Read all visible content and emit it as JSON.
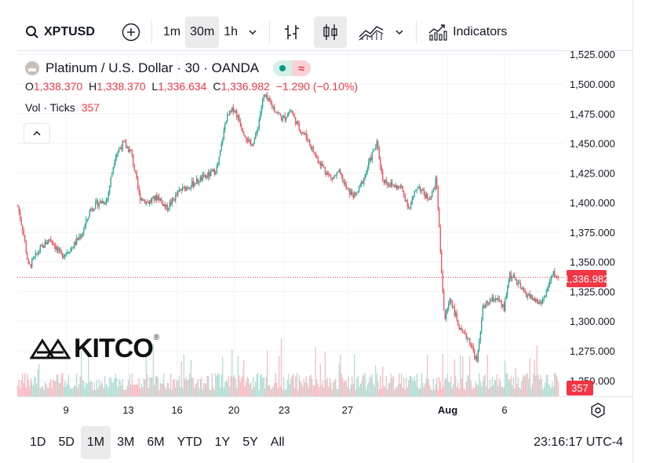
{
  "toolbar": {
    "symbol": "XPTUSD",
    "intervals": [
      "1m",
      "30m",
      "1h"
    ],
    "active_interval": "30m",
    "indicators_label": "Indicators"
  },
  "legend": {
    "title": "Platinum / U.S. Dollar · 30 · OANDA",
    "ohlc": {
      "o_label": "O",
      "o": "1,338.370",
      "h_label": "H",
      "h": "1,338.370",
      "l_label": "L",
      "l": "1,336.634",
      "c_label": "C",
      "c": "1,336.982",
      "change": "−1.290 (−0.10%)"
    },
    "volume_label": "Vol · Ticks",
    "volume_value": "357"
  },
  "watermark": {
    "text": "KITCO",
    "mark": "®"
  },
  "price_tag": "1,336.982",
  "volume_tag": "357",
  "bottom": {
    "ranges": [
      "1D",
      "5D",
      "1M",
      "3M",
      "6M",
      "YTD",
      "1Y",
      "5Y",
      "All"
    ],
    "active_range": "1M",
    "clock": "23:16:17 UTC-4"
  },
  "colors": {
    "up": "#089981",
    "down": "#f23645",
    "up_vol": "#9fd6cb",
    "down_vol": "#f7a9b0"
  },
  "icons": [
    "search-icon",
    "add-symbol-icon",
    "chevron-down-icon",
    "bar-style-icon",
    "candle-style-icon",
    "area-style-icon",
    "indicators-icon",
    "settings-icon"
  ],
  "chart_data": {
    "type": "candlestick",
    "symbol": "XPTUSD",
    "y_ticks": [
      "1,525.000",
      "1,500.000",
      "1,475.000",
      "1,450.000",
      "1,425.000",
      "1,400.000",
      "1,375.000",
      "1,350.000",
      "1,325.000",
      "1,300.000",
      "1,275.000",
      "1,250.000"
    ],
    "y_tick_values": [
      1525,
      1500,
      1475,
      1450,
      1425,
      1400,
      1375,
      1350,
      1325,
      1300,
      1275,
      1250
    ],
    "ylim": [
      1240,
      1532
    ],
    "x_ticks": [
      "9",
      "13",
      "16",
      "20",
      "23",
      "27",
      "Aug",
      "6"
    ],
    "x_tick_positions": [
      0.09,
      0.205,
      0.295,
      0.4,
      0.493,
      0.61,
      0.795,
      0.9
    ],
    "last_price": 1336.982,
    "path": [
      [
        0.0,
        1397
      ],
      [
        0.01,
        1375
      ],
      [
        0.02,
        1345
      ],
      [
        0.04,
        1360
      ],
      [
        0.06,
        1370
      ],
      [
        0.08,
        1355
      ],
      [
        0.1,
        1362
      ],
      [
        0.12,
        1375
      ],
      [
        0.135,
        1395
      ],
      [
        0.15,
        1400
      ],
      [
        0.165,
        1402
      ],
      [
        0.18,
        1440
      ],
      [
        0.195,
        1450
      ],
      [
        0.21,
        1442
      ],
      [
        0.225,
        1405
      ],
      [
        0.24,
        1400
      ],
      [
        0.26,
        1405
      ],
      [
        0.275,
        1395
      ],
      [
        0.3,
        1410
      ],
      [
        0.32,
        1415
      ],
      [
        0.34,
        1420
      ],
      [
        0.36,
        1425
      ],
      [
        0.37,
        1430
      ],
      [
        0.385,
        1470
      ],
      [
        0.4,
        1480
      ],
      [
        0.415,
        1463
      ],
      [
        0.43,
        1448
      ],
      [
        0.44,
        1455
      ],
      [
        0.455,
        1490
      ],
      [
        0.47,
        1482
      ],
      [
        0.49,
        1470
      ],
      [
        0.505,
        1478
      ],
      [
        0.52,
        1463
      ],
      [
        0.535,
        1455
      ],
      [
        0.55,
        1440
      ],
      [
        0.565,
        1430
      ],
      [
        0.58,
        1420
      ],
      [
        0.595,
        1425
      ],
      [
        0.61,
        1410
      ],
      [
        0.625,
        1405
      ],
      [
        0.64,
        1420
      ],
      [
        0.655,
        1440
      ],
      [
        0.665,
        1450
      ],
      [
        0.675,
        1420
      ],
      [
        0.69,
        1415
      ],
      [
        0.71,
        1412
      ],
      [
        0.725,
        1395
      ],
      [
        0.74,
        1415
      ],
      [
        0.755,
        1405
      ],
      [
        0.765,
        1405
      ],
      [
        0.775,
        1420
      ],
      [
        0.782,
        1360
      ],
      [
        0.79,
        1300
      ],
      [
        0.8,
        1320
      ],
      [
        0.81,
        1305
      ],
      [
        0.82,
        1290
      ],
      [
        0.835,
        1285
      ],
      [
        0.85,
        1265
      ],
      [
        0.86,
        1310
      ],
      [
        0.87,
        1315
      ],
      [
        0.885,
        1320
      ],
      [
        0.9,
        1310
      ],
      [
        0.91,
        1340
      ],
      [
        0.92,
        1335
      ],
      [
        0.935,
        1325
      ],
      [
        0.95,
        1320
      ],
      [
        0.965,
        1315
      ],
      [
        0.975,
        1320
      ],
      [
        0.99,
        1340
      ],
      [
        1.0,
        1337
      ]
    ]
  }
}
